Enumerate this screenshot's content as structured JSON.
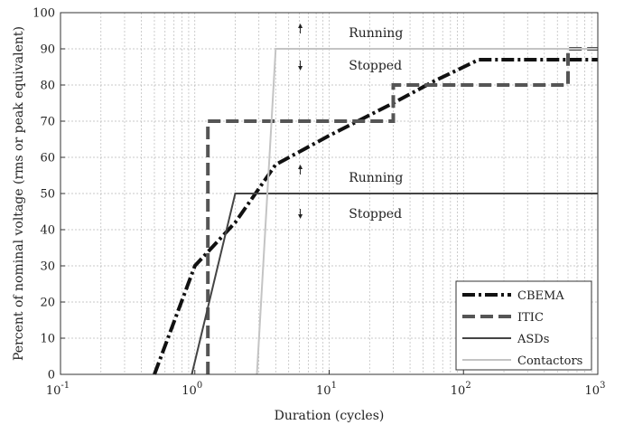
{
  "chart_data": {
    "type": "line",
    "xlabel": "Duration (cycles)",
    "ylabel": "Percent of nominal voltage (rms or peak equivalent)",
    "xscale": "log",
    "xlim": [
      0.1,
      1000
    ],
    "ylim": [
      0,
      100
    ],
    "grid": true,
    "legend_position": "bottom-right",
    "x_ticks": [
      {
        "base": "10",
        "exp": "-1"
      },
      {
        "base": "10",
        "exp": "0"
      },
      {
        "base": "10",
        "exp": "1"
      },
      {
        "base": "10",
        "exp": "2"
      },
      {
        "base": "10",
        "exp": "3"
      }
    ],
    "y_ticks": [
      "0",
      "10",
      "20",
      "30",
      "40",
      "50",
      "60",
      "70",
      "80",
      "90",
      "100"
    ],
    "series": [
      {
        "name": "CBEMA",
        "color": "#111111",
        "style": "dashdot",
        "x": [
          0.5,
          1,
          2,
          4,
          10,
          30,
          60,
          130,
          1000
        ],
        "y": [
          0,
          30,
          42,
          58,
          66,
          75,
          81,
          87,
          87
        ]
      },
      {
        "name": "ITIC",
        "color": "#555555",
        "style": "dashed",
        "x": [
          1.25,
          1.25,
          30,
          30,
          600,
          600,
          1000
        ],
        "y": [
          0,
          70,
          70,
          80,
          80,
          90,
          90
        ]
      },
      {
        "name": "ASDs",
        "color": "#444444",
        "style": "solid",
        "x": [
          0.95,
          2,
          1000
        ],
        "y": [
          0,
          50,
          50
        ]
      },
      {
        "name": "Contactors",
        "color": "#c4c4c4",
        "style": "solid",
        "x": [
          2.9,
          4,
          1000
        ],
        "y": [
          0,
          90,
          90
        ]
      }
    ],
    "annotations": [
      {
        "text": "Running",
        "x": 14,
        "y": 94.5,
        "arrow": "up",
        "arrow_x": 6.1,
        "arrow_y": 96.5
      },
      {
        "text": "Stopped",
        "x": 14,
        "y": 85.5,
        "arrow": "down",
        "arrow_x": 6.1,
        "arrow_y": 84.5
      },
      {
        "text": "Running",
        "x": 14,
        "y": 54.5,
        "arrow": "up",
        "arrow_x": 6.1,
        "arrow_y": 57.5
      },
      {
        "text": "Stopped",
        "x": 14,
        "y": 44.5,
        "arrow": "down",
        "arrow_x": 6.1,
        "arrow_y": 43.5
      }
    ]
  }
}
